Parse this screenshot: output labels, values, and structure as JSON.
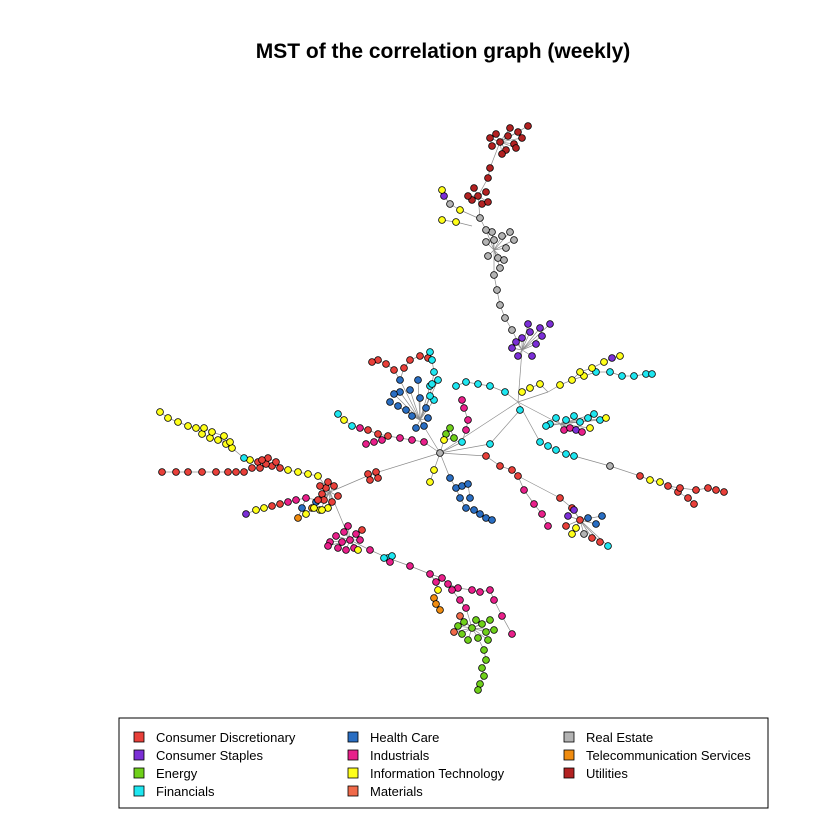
{
  "chart_data": {
    "type": "network",
    "title": "MST of the correlation graph (weekly)",
    "legend": {
      "placement": "bottom",
      "columns": 3,
      "entries": [
        {
          "key": "cd",
          "label": "Consumer Discretionary",
          "color": "#e8403a"
        },
        {
          "key": "cs",
          "label": "Consumer Staples",
          "color": "#7b2fd6"
        },
        {
          "key": "en",
          "label": "Energy",
          "color": "#6fd01a"
        },
        {
          "key": "fi",
          "label": "Financials",
          "color": "#1ee6f0"
        },
        {
          "key": "hc",
          "label": "Health Care",
          "color": "#2a6ec2"
        },
        {
          "key": "in",
          "label": "Industrials",
          "color": "#e8208a"
        },
        {
          "key": "it",
          "label": "Information Technology",
          "color": "#ffff1a"
        },
        {
          "key": "ma",
          "label": "Materials",
          "color": "#f06a4a"
        },
        {
          "key": "re",
          "label": "Real Estate",
          "color": "#b3b3b3"
        },
        {
          "key": "ts",
          "label": "Telecommunication Services",
          "color": "#f08c10"
        },
        {
          "key": "ut",
          "label": "Utilities",
          "color": "#b22222"
        }
      ]
    },
    "grid": false,
    "axes": false
  }
}
